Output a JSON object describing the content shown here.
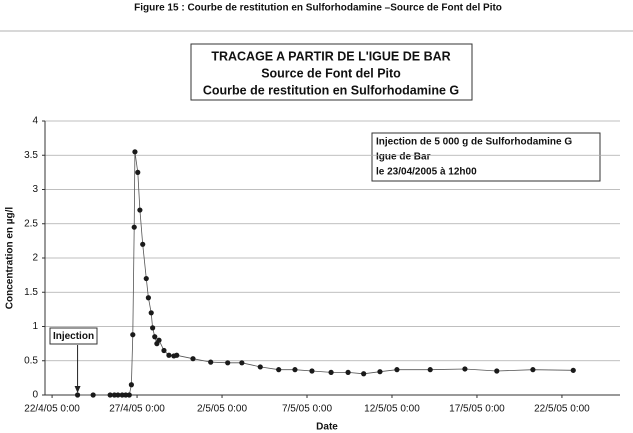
{
  "chart_data": {
    "type": "line",
    "caption": "Figure 15 : Courbe de restitution en Sulforhodamine –Source de Font del Pito",
    "title_lines": [
      "TRACAGE A PARTIR DE L'IGUE DE BAR",
      "Source de Font del Pito",
      "Courbe de restitution en Sulforhodamine G"
    ],
    "annotation_lines": [
      "Injection de 5 000 g de Sulforhodamine G",
      "Igue de Bar",
      "le 23/04/2005 à 12h00"
    ],
    "injection_label": "Injection",
    "x_label": "Date",
    "y_label": "Concentration en µg/l",
    "xlim": [
      "21/4/05 14:00",
      "25/5/05 10:00"
    ],
    "xticks": [
      "22/4/05 0:00",
      "27/4/05 0:00",
      "2/5/05 0:00",
      "7/5/05 0:00",
      "12/5/05 0:00",
      "17/5/05 0:00",
      "22/5/05 0:00"
    ],
    "ylim": [
      0,
      4
    ],
    "yticks": [
      0,
      0.5,
      1,
      1.5,
      2,
      2.5,
      3,
      3.5,
      4
    ],
    "grid": true,
    "x": [
      "23/4/05 12:00",
      "24/4/05 10:00",
      "25/4/05 10:00",
      "25/4/05 16:00",
      "25/4/05 21:00",
      "26/4/05 3:00",
      "26/4/05 8:00",
      "26/4/05 13:00",
      "26/4/05 16:00",
      "26/4/05 18:00",
      "26/4/05 20:00",
      "26/4/05 21:00",
      "27/4/05 1:00",
      "27/4/05 4:00",
      "27/4/05 8:00",
      "27/4/05 13:00",
      "27/4/05 16:00",
      "27/4/05 20:00",
      "27/4/05 22:00",
      "28/4/05 1:00",
      "28/4/05 4:00",
      "28/4/05 7:00",
      "28/4/05 14:00",
      "28/4/05 21:00",
      "29/4/05 4:00",
      "29/4/05 8:00",
      "30/4/05 7:00",
      "1/5/05 8:00",
      "2/5/05 8:00",
      "3/5/05 4:00",
      "4/5/05 6:00",
      "5/5/05 8:00",
      "6/5/05 7:00",
      "7/5/05 7:00",
      "8/5/05 10:00",
      "9/5/05 10:00",
      "10/5/05 8:00",
      "11/5/05 7:00",
      "12/5/05 7:00",
      "14/5/05 6:00",
      "16/5/05 7:00",
      "18/5/05 4:00",
      "20/5/05 7:00",
      "22/5/05 16:00"
    ],
    "series": [
      {
        "color": "#1a1a1a",
        "values": [
          0,
          0,
          0,
          0,
          0,
          0,
          0,
          0,
          0.15,
          0.88,
          2.45,
          3.55,
          3.25,
          2.7,
          2.2,
          1.7,
          1.42,
          1.2,
          0.98,
          0.85,
          0.75,
          0.8,
          0.65,
          0.58,
          0.57,
          0.58,
          0.53,
          0.48,
          0.47,
          0.47,
          0.41,
          0.37,
          0.37,
          0.35,
          0.33,
          0.33,
          0.31,
          0.34,
          0.37,
          0.37,
          0.38,
          0.35,
          0.37,
          0.36
        ]
      }
    ]
  }
}
